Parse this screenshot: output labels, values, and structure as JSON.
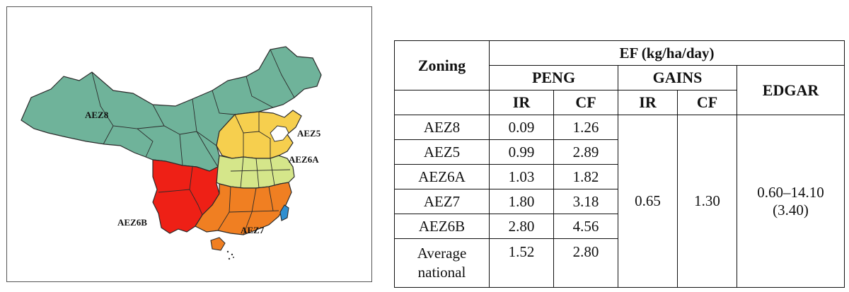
{
  "map": {
    "zone_labels": {
      "aez8": "AEZ8",
      "aez5": "AEZ5",
      "aez6a": "AEZ6A",
      "aez6b": "AEZ6B",
      "aez7": "AEZ7"
    },
    "colors": {
      "aez8": "#6fb39a",
      "aez5": "#f6cf4e",
      "aez6a": "#d5e68a",
      "aez6b": "#ee2016",
      "aez7": "#f07f22",
      "taiwan": "#2f8fd0",
      "border": "#2b2b2b"
    }
  },
  "table": {
    "header": {
      "ef": "EF (kg/ha/day)",
      "zoning": "Zoning",
      "peng": "PENG",
      "gains": "GAINS",
      "edgar": "EDGAR",
      "peng_ir": "IR",
      "peng_cf": "CF",
      "gains_ir": "IR",
      "gains_cf": "CF"
    },
    "rows": [
      {
        "zone": "AEZ8",
        "ir": "0.09",
        "cf": "1.26"
      },
      {
        "zone": "AEZ5",
        "ir": "0.99",
        "cf": "2.89"
      },
      {
        "zone": "AEZ6A",
        "ir": "1.03",
        "cf": "1.82"
      },
      {
        "zone": "AEZ7",
        "ir": "1.80",
        "cf": "3.18"
      },
      {
        "zone": "AEZ6B",
        "ir": "2.80",
        "cf": "4.56"
      },
      {
        "zone": "Average national",
        "ir": "1.52",
        "cf": "2.80"
      }
    ],
    "gains_ir_value": "0.65",
    "gains_cf_value": "1.30",
    "edgar_range": "0.60–14.10",
    "edgar_mean": "(3.40)"
  }
}
